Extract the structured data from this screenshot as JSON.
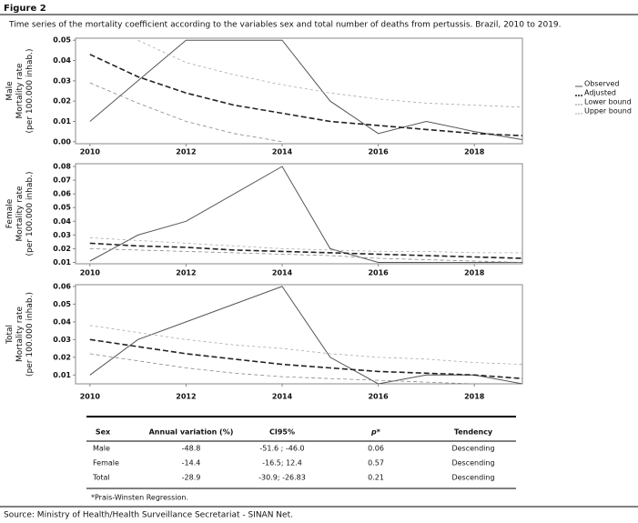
{
  "figure_label": "Figure 2",
  "caption": "Time series of the mortality coefficient according to the variables sex and total number of deaths from pertussis. Brazil, 2010 to 2019.",
  "chart_data": [
    {
      "type": "line",
      "ylabel": [
        "Male",
        "Mortality rate",
        "(per 100.000 inhab.)"
      ],
      "legend": "right",
      "x": [
        2010,
        2011,
        2012,
        2013,
        2014,
        2015,
        2016,
        2017,
        2018,
        2019
      ],
      "xlim": [
        2009.7,
        2019
      ],
      "xticks": [
        2010,
        2012,
        2014,
        2016,
        2018
      ],
      "ylim": [
        -0.001,
        0.051
      ],
      "yticks": [
        {
          "value": 0,
          "label": "0.00"
        },
        0.01,
        0.02,
        0.03,
        0.04,
        0.05
      ],
      "series": [
        {
          "name": "Observed",
          "color": "#555555",
          "dash": "none",
          "values": [
            0.01,
            0.03,
            0.05,
            0.05,
            0.05,
            0.02,
            0.004,
            0.01,
            0.005,
            0.001
          ]
        },
        {
          "name": "Adjusted",
          "color": "#222222",
          "dash": "6,3",
          "values": [
            0.043,
            0.032,
            0.024,
            0.018,
            0.014,
            0.01,
            0.008,
            0.006,
            0.004,
            0.003
          ]
        },
        {
          "name": "Lower bound",
          "color": "#888888",
          "dash": "4,3",
          "values": [
            0.029,
            0.019,
            0.01,
            0.004,
            0,
            null,
            null,
            null,
            null,
            null
          ]
        },
        {
          "name": "Upper bound",
          "color": "#aaaaaa",
          "dash": "3,3",
          "values": [
            null,
            0.05,
            0.039,
            0.033,
            0.028,
            0.024,
            0.021,
            0.019,
            0.018,
            0.017
          ]
        }
      ]
    },
    {
      "type": "line",
      "ylabel": [
        "Female",
        "Mortality rate",
        "(per 100.000 inhab.)"
      ],
      "x": [
        2010,
        2011,
        2012,
        2013,
        2014,
        2015,
        2016,
        2017,
        2018,
        2019
      ],
      "xlim": [
        2009.7,
        2019
      ],
      "xticks": [
        2010,
        2012,
        2014,
        2016,
        2018
      ],
      "ylim": [
        0.009,
        0.082
      ],
      "yticks": [
        0.01,
        0.02,
        0.03,
        0.04,
        0.05,
        0.06,
        0.07,
        0.08
      ],
      "series": [
        {
          "color": "#555555",
          "dash": "none",
          "values": [
            0.011,
            0.03,
            0.04,
            0.06,
            0.08,
            0.02,
            0.01,
            0.01,
            0.01,
            0.01
          ]
        },
        {
          "color": "#222222",
          "dash": "6,3",
          "values": [
            0.024,
            0.022,
            0.021,
            0.019,
            0.018,
            0.017,
            0.016,
            0.015,
            0.014,
            0.013
          ]
        },
        {
          "color": "#888888",
          "dash": "4,3",
          "values": [
            0.02,
            0.019,
            0.018,
            0.017,
            0.016,
            0.015,
            0.013,
            0.012,
            0.011,
            0.01
          ]
        },
        {
          "color": "#aaaaaa",
          "dash": "3,3",
          "values": [
            0.028,
            0.026,
            0.024,
            0.022,
            0.02,
            0.019,
            0.018,
            0.018,
            0.017,
            0.017
          ]
        }
      ]
    },
    {
      "type": "line",
      "ylabel": [
        "Total",
        "Mortality rate",
        "(per 100.000 inhab.)"
      ],
      "x": [
        2010,
        2011,
        2012,
        2013,
        2014,
        2015,
        2016,
        2017,
        2018,
        2019
      ],
      "xlim": [
        2009.7,
        2019
      ],
      "xticks": [
        2010,
        2012,
        2014,
        2016,
        2018
      ],
      "ylim": [
        0.005,
        0.061
      ],
      "yticks": [
        0.01,
        0.02,
        0.03,
        0.04,
        0.05,
        0.06
      ],
      "series": [
        {
          "color": "#555555",
          "dash": "none",
          "values": [
            0.01,
            0.03,
            0.04,
            0.05,
            0.06,
            0.02,
            0.005,
            0.01,
            0.01,
            0.005
          ]
        },
        {
          "color": "#222222",
          "dash": "6,3",
          "values": [
            0.03,
            0.026,
            0.022,
            0.019,
            0.016,
            0.014,
            0.012,
            0.011,
            0.01,
            0.008
          ]
        },
        {
          "color": "#888888",
          "dash": "4,3",
          "values": [
            0.022,
            0.018,
            0.014,
            0.011,
            0.009,
            0.008,
            0.007,
            0.006,
            0.005,
            0.004
          ]
        },
        {
          "color": "#aaaaaa",
          "dash": "3,3",
          "values": [
            0.038,
            0.034,
            0.03,
            0.027,
            0.025,
            0.022,
            0.02,
            0.019,
            0.017,
            0.016
          ]
        }
      ]
    }
  ],
  "table": {
    "header": [
      "Sex",
      "Annual variation (%)",
      "CI95%",
      "p*",
      "Tendency"
    ],
    "rows": [
      [
        "Male",
        "-48.8",
        "-51.6 ; -46.0",
        "0.06",
        "Descending"
      ],
      [
        "Female",
        "-14.4",
        "-16.5; 12.4",
        "0.57",
        "Descending"
      ],
      [
        "Total",
        "-28.9",
        "-30.9; -26.83",
        "0.21",
        "Descending"
      ]
    ]
  },
  "footnote": "*Prais-Winsten Regression.",
  "source": "Source: Ministry of Health/Health Surveillance Secretariat - SINAN Net."
}
